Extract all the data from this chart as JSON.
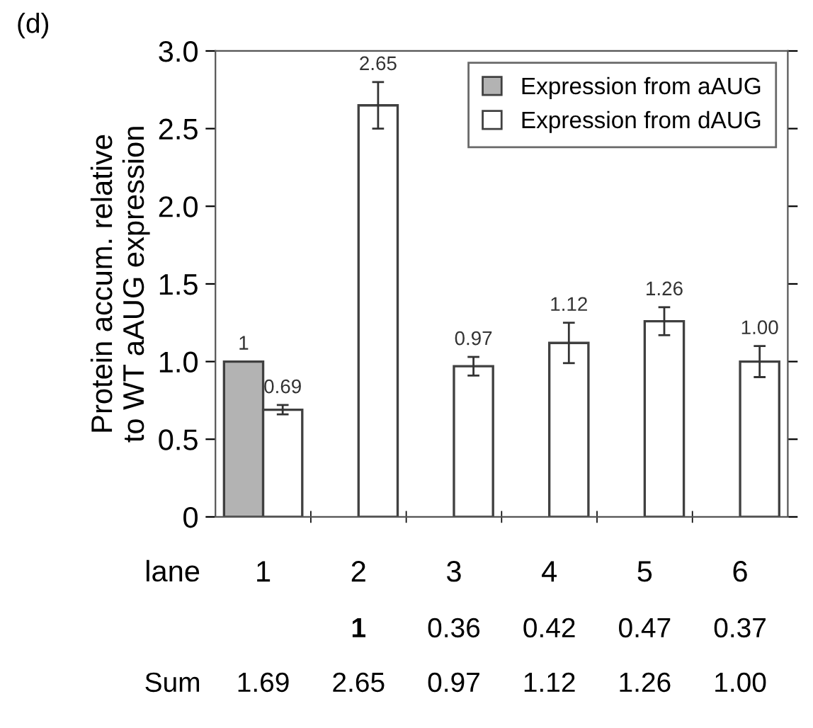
{
  "chart_data": {
    "type": "bar",
    "categories": [
      "1",
      "2",
      "3",
      "4",
      "5",
      "6"
    ],
    "xlabel": "lane",
    "ylabel": "Protein accum. relative\nto WT aAUG expression",
    "series": [
      {
        "name": "Expression from aAUG",
        "color": "#b3b3b3",
        "values": [
          1,
          null,
          null,
          null,
          null,
          null
        ],
        "value_labels": [
          "1",
          null,
          null,
          null,
          null,
          null
        ]
      },
      {
        "name": "Expression from dAUG",
        "color": "#ffffff",
        "values": [
          0.69,
          2.65,
          0.97,
          1.12,
          1.26,
          1.0
        ],
        "errors": [
          0.03,
          0.15,
          0.06,
          0.13,
          0.09,
          0.1
        ],
        "value_labels": [
          "0.69",
          "2.65",
          "0.97",
          "1.12",
          "1.26",
          "1.00"
        ]
      }
    ],
    "ylim": [
      0,
      3.0
    ],
    "yticks": [
      0,
      0.5,
      {
        "value": 1,
        "label": "1.0"
      },
      1.5,
      {
        "value": 2,
        "label": "2.0"
      },
      2.5,
      {
        "value": 3,
        "label": "3.0"
      }
    ],
    "legend": "top right",
    "grid": false,
    "annotations": [
      "(d)",
      "1",
      "0.36",
      "0.42",
      "0.47",
      "0.37",
      "Sum",
      "1.69",
      "2.65",
      "0.97",
      "1.12",
      "1.26",
      "1.00"
    ]
  }
}
